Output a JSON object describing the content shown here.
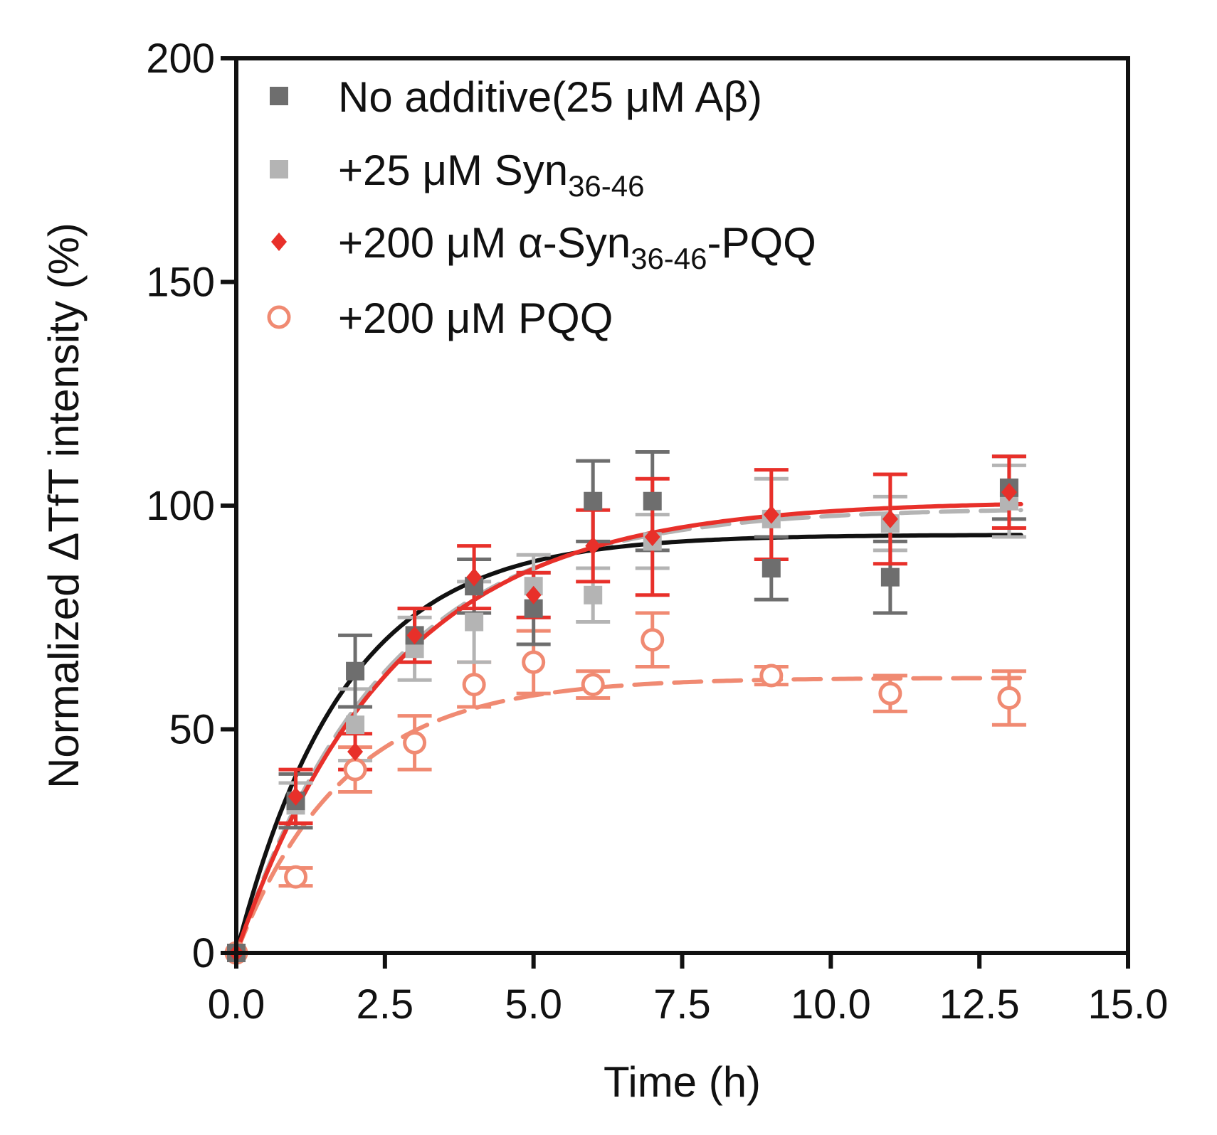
{
  "chart_data": {
    "type": "scatter",
    "xlabel": "Time (h)",
    "ylabel": "Normalized ΔTfT intensity (%)",
    "xlim": [
      0,
      15
    ],
    "ylim": [
      0,
      200
    ],
    "xticks": [
      "0.0",
      "2.5",
      "5.0",
      "7.5",
      "10.0",
      "12.5",
      "15.0"
    ],
    "yticks": [
      "0",
      "50",
      "100",
      "150",
      "200"
    ],
    "grid": false,
    "legend_position": "top-left",
    "series": [
      {
        "key": "none",
        "legend_main": "No additive(25 μM Aβ)",
        "legend_sub": "",
        "legend_tail": "",
        "color": "#6e6e6e",
        "marker": "square",
        "fit_color": "#111111",
        "fit_dash": "solid",
        "fit": {
          "plateau": 93.5,
          "k": 0.55
        },
        "points": [
          {
            "x": 0,
            "y": 0,
            "err": 0
          },
          {
            "x": 1,
            "y": 34,
            "err": 6
          },
          {
            "x": 2,
            "y": 63,
            "err": 8
          },
          {
            "x": 3,
            "y": 71,
            "err": 6
          },
          {
            "x": 4,
            "y": 82,
            "err": 6
          },
          {
            "x": 5,
            "y": 77,
            "err": 8
          },
          {
            "x": 6,
            "y": 101,
            "err": 9
          },
          {
            "x": 7,
            "y": 101,
            "err": 11
          },
          {
            "x": 9,
            "y": 86,
            "err": 7
          },
          {
            "x": 11,
            "y": 84,
            "err": 8
          },
          {
            "x": 13,
            "y": 104,
            "err": 7
          }
        ]
      },
      {
        "key": "syn",
        "legend_main": "+25 μM Syn",
        "legend_sub": "36-46",
        "legend_tail": "",
        "color": "#b4b4b4",
        "marker": "square",
        "fit_color": "#b4b4b4",
        "fit_dash": "dashed",
        "fit": {
          "plateau": 99.5,
          "k": 0.4
        },
        "points": [
          {
            "x": 0,
            "y": 0,
            "err": 0
          },
          {
            "x": 1,
            "y": 33,
            "err": 5
          },
          {
            "x": 2,
            "y": 51,
            "err": 8
          },
          {
            "x": 3,
            "y": 68,
            "err": 7
          },
          {
            "x": 4,
            "y": 74,
            "err": 9
          },
          {
            "x": 5,
            "y": 82,
            "err": 7
          },
          {
            "x": 6,
            "y": 80,
            "err": 6
          },
          {
            "x": 7,
            "y": 92,
            "err": 6
          },
          {
            "x": 9,
            "y": 97,
            "err": 9
          },
          {
            "x": 11,
            "y": 96,
            "err": 6
          },
          {
            "x": 13,
            "y": 101,
            "err": 8
          }
        ]
      },
      {
        "key": "synpqq",
        "legend_main": "+200 μM α-Syn",
        "legend_sub": "36-46",
        "legend_tail": "-PQQ",
        "color": "#e8302a",
        "marker": "diamond",
        "fit_color": "#e8302a",
        "fit_dash": "solid",
        "fit": {
          "plateau": 101,
          "k": 0.38
        },
        "points": [
          {
            "x": 0,
            "y": 0,
            "err": 0
          },
          {
            "x": 1,
            "y": 35,
            "err": 6
          },
          {
            "x": 2,
            "y": 45,
            "err": 4
          },
          {
            "x": 3,
            "y": 71,
            "err": 6
          },
          {
            "x": 4,
            "y": 84,
            "err": 7
          },
          {
            "x": 5,
            "y": 80,
            "err": 5
          },
          {
            "x": 6,
            "y": 91,
            "err": 8
          },
          {
            "x": 7,
            "y": 93,
            "err": 13
          },
          {
            "x": 9,
            "y": 98,
            "err": 10
          },
          {
            "x": 11,
            "y": 97,
            "err": 10
          },
          {
            "x": 13,
            "y": 103,
            "err": 8
          }
        ]
      },
      {
        "key": "pqq",
        "legend_main": "+200 μM PQQ",
        "legend_sub": "",
        "legend_tail": "",
        "color": "#f08a72",
        "marker": "circle-open",
        "fit_color": "#f08a72",
        "fit_dash": "dashed",
        "fit": {
          "plateau": 61.5,
          "k": 0.55
        },
        "points": [
          {
            "x": 0,
            "y": 0,
            "err": 0
          },
          {
            "x": 1,
            "y": 17,
            "err": 2
          },
          {
            "x": 2,
            "y": 41,
            "err": 5
          },
          {
            "x": 3,
            "y": 47,
            "err": 6
          },
          {
            "x": 4,
            "y": 60,
            "err": 5
          },
          {
            "x": 5,
            "y": 65,
            "err": 7
          },
          {
            "x": 6,
            "y": 60,
            "err": 3
          },
          {
            "x": 7,
            "y": 70,
            "err": 6
          },
          {
            "x": 9,
            "y": 62,
            "err": 2
          },
          {
            "x": 11,
            "y": 58,
            "err": 4
          },
          {
            "x": 13,
            "y": 57,
            "err": 6
          }
        ]
      }
    ]
  }
}
